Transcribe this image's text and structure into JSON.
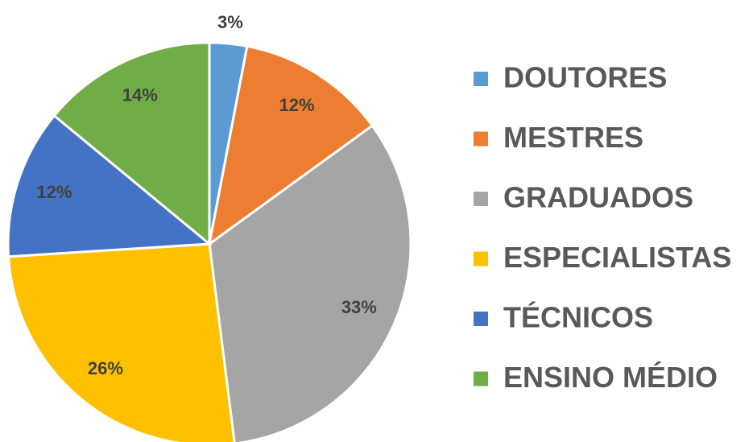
{
  "chart_data": {
    "type": "pie",
    "categories": [
      "DOUTORES",
      "MESTRES",
      "GRADUADOS",
      "ESPECIALISTAS",
      "TÉCNICOS",
      "ENSINO MÉDIO"
    ],
    "values": [
      3,
      12,
      33,
      26,
      12,
      14
    ],
    "value_labels": [
      "3%",
      "12%",
      "33%",
      "26%",
      "12%",
      "14%"
    ],
    "colors": [
      "#5b9bd5",
      "#ed7d31",
      "#a5a5a5",
      "#ffc000",
      "#4472c4",
      "#70ad47"
    ],
    "legend": "right"
  }
}
